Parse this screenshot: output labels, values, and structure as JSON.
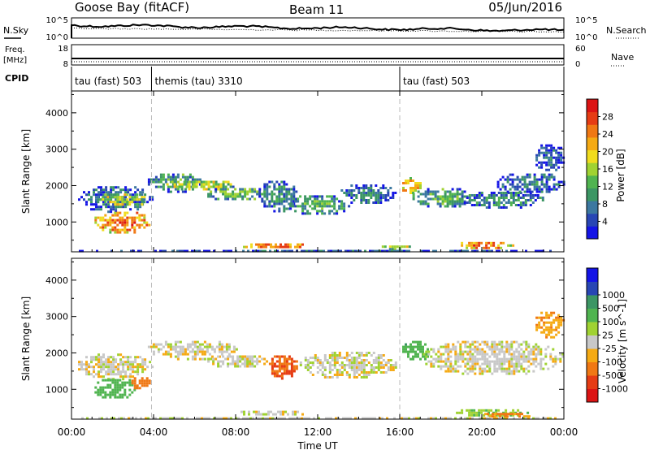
{
  "header": {
    "station": "Goose Bay (fitACF)",
    "beam": "Beam 11",
    "date": "05/Jun/2016"
  },
  "noise_panel": {
    "left_label": "N.Sky",
    "right_label": "N.Search",
    "left_ticks": [
      "10^5",
      "10^0"
    ],
    "right_ticks": [
      "10^5",
      "10^0"
    ]
  },
  "freq_panel": {
    "left_label_1": "Freq.",
    "left_label_2": "[MHz]",
    "right_label": "Nave",
    "left_ticks": [
      "18",
      "8"
    ],
    "right_ticks": [
      "60",
      "0"
    ]
  },
  "cpid_panel": {
    "label": "CPID",
    "segments": [
      {
        "start": 0,
        "end": 3.9,
        "name": "tau (fast) 503"
      },
      {
        "start": 3.9,
        "end": 16.0,
        "name": "themis (tau) 3310"
      },
      {
        "start": 16.0,
        "end": 24.0,
        "name": "tau (fast) 503"
      }
    ]
  },
  "colors": {
    "power": [
      "#1414e6",
      "#2846b4",
      "#3c78a0",
      "#3c9664",
      "#50b450",
      "#a0d232",
      "#f0dc1e",
      "#f5aa14",
      "#f07814",
      "#e63c14",
      "#dc1414"
    ],
    "velocity": [
      "#dc1414",
      "#e63c14",
      "#f07814",
      "#f5aa14",
      "#c8c8c8",
      "#a0d232",
      "#50b450",
      "#3c9664",
      "#2846b4",
      "#1414e6"
    ]
  },
  "chart_data": [
    {
      "type": "heatmap",
      "title": "",
      "xlabel": "",
      "ylabel": "Slant Range [km]",
      "xlim": [
        0,
        24
      ],
      "ylim": [
        180,
        4600
      ],
      "yticks": [
        1000,
        2000,
        3000,
        4000
      ],
      "colorbar": {
        "label": "Power [dB]",
        "ticks": [
          "4",
          "8",
          "12",
          "16",
          "20",
          "24",
          "28"
        ],
        "range": [
          0,
          32
        ]
      },
      "blobs": [
        {
          "t0": 0.2,
          "t1": 3.9,
          "r0": 1300,
          "r1": 2050,
          "v": 8
        },
        {
          "t0": 1.0,
          "t1": 3.8,
          "r0": 700,
          "r1": 1350,
          "v": 26
        },
        {
          "t0": 1.0,
          "t1": 3.8,
          "r0": 1450,
          "r1": 1850,
          "v": 18
        },
        {
          "t0": 3.6,
          "t1": 6.5,
          "r0": 1850,
          "r1": 2400,
          "v": 12
        },
        {
          "t0": 4.5,
          "t1": 8.0,
          "r0": 1900,
          "r1": 2200,
          "v": 18
        },
        {
          "t0": 6.5,
          "t1": 9.5,
          "r0": 1600,
          "r1": 2000,
          "v": 14
        },
        {
          "t0": 9.0,
          "t1": 11.0,
          "r0": 1300,
          "r1": 2200,
          "v": 10
        },
        {
          "t0": 10.5,
          "t1": 13.5,
          "r0": 1200,
          "r1": 1800,
          "v": 12
        },
        {
          "t0": 13.0,
          "t1": 15.8,
          "r0": 1500,
          "r1": 2100,
          "v": 8
        },
        {
          "t0": 16.0,
          "t1": 17.0,
          "r0": 1800,
          "r1": 2300,
          "v": 22
        },
        {
          "t0": 16.5,
          "t1": 19.5,
          "r0": 1400,
          "r1": 2000,
          "v": 12
        },
        {
          "t0": 19.0,
          "t1": 23.0,
          "r0": 1400,
          "r1": 1900,
          "v": 10
        },
        {
          "t0": 20.5,
          "t1": 24.0,
          "r0": 1800,
          "r1": 2400,
          "v": 8
        },
        {
          "t0": 22.5,
          "t1": 24.0,
          "r0": 2400,
          "r1": 3200,
          "v": 6
        },
        {
          "t0": 8.0,
          "t1": 11.5,
          "r0": 280,
          "r1": 480,
          "v": 26
        },
        {
          "t0": 15.0,
          "t1": 16.5,
          "r0": 280,
          "r1": 420,
          "v": 18
        },
        {
          "t0": 18.5,
          "t1": 21.5,
          "r0": 280,
          "r1": 520,
          "v": 26
        },
        {
          "t0": 0.0,
          "t1": 24.0,
          "r0": 190,
          "r1": 300,
          "v": 6
        }
      ]
    },
    {
      "type": "heatmap",
      "title": "",
      "xlabel": "Time UT",
      "ylabel": "Slant Range [km]",
      "xlim": [
        0,
        24
      ],
      "ylim": [
        180,
        4600
      ],
      "yticks": [
        1000,
        2000,
        3000,
        4000
      ],
      "xticks": [
        "00:00",
        "04:00",
        "08:00",
        "12:00",
        "16:00",
        "20:00",
        "00:00"
      ],
      "colorbar": {
        "label": "Velocity [m s^-1]",
        "ticks": [
          "-1000",
          "-500",
          "-100",
          "-25",
          "25",
          "100",
          "500",
          "1000"
        ],
        "range": [
          -1200,
          1200
        ]
      },
      "blobs": [
        {
          "t0": 0.2,
          "t1": 3.9,
          "r0": 1300,
          "r1": 2050,
          "v": 0
        },
        {
          "t0": 1.0,
          "t1": 3.2,
          "r0": 750,
          "r1": 1350,
          "v": 300
        },
        {
          "t0": 2.8,
          "t1": 3.8,
          "r0": 1000,
          "r1": 1400,
          "v": -300
        },
        {
          "t0": 3.6,
          "t1": 8.0,
          "r0": 1850,
          "r1": 2400,
          "v": 0
        },
        {
          "t0": 6.5,
          "t1": 9.5,
          "r0": 1600,
          "r1": 2000,
          "v": 0
        },
        {
          "t0": 9.5,
          "t1": 11.0,
          "r0": 1300,
          "r1": 2000,
          "v": -450
        },
        {
          "t0": 11.0,
          "t1": 15.8,
          "r0": 1300,
          "r1": 2100,
          "v": 0
        },
        {
          "t0": 16.0,
          "t1": 17.5,
          "r0": 1800,
          "r1": 2400,
          "v": 350
        },
        {
          "t0": 17.0,
          "t1": 24.0,
          "r0": 1400,
          "r1": 2400,
          "v": 0
        },
        {
          "t0": 22.5,
          "t1": 24.0,
          "r0": 2400,
          "r1": 3200,
          "v": -80
        },
        {
          "t0": 8.0,
          "t1": 11.5,
          "r0": 280,
          "r1": 480,
          "v": 0
        },
        {
          "t0": 18.5,
          "t1": 22.5,
          "r0": 280,
          "r1": 520,
          "v": 100
        },
        {
          "t0": 20.0,
          "t1": 22.5,
          "r0": 250,
          "r1": 420,
          "v": -120
        },
        {
          "t0": 0.0,
          "t1": 24.0,
          "r0": 190,
          "r1": 300,
          "v": 0
        }
      ]
    }
  ]
}
